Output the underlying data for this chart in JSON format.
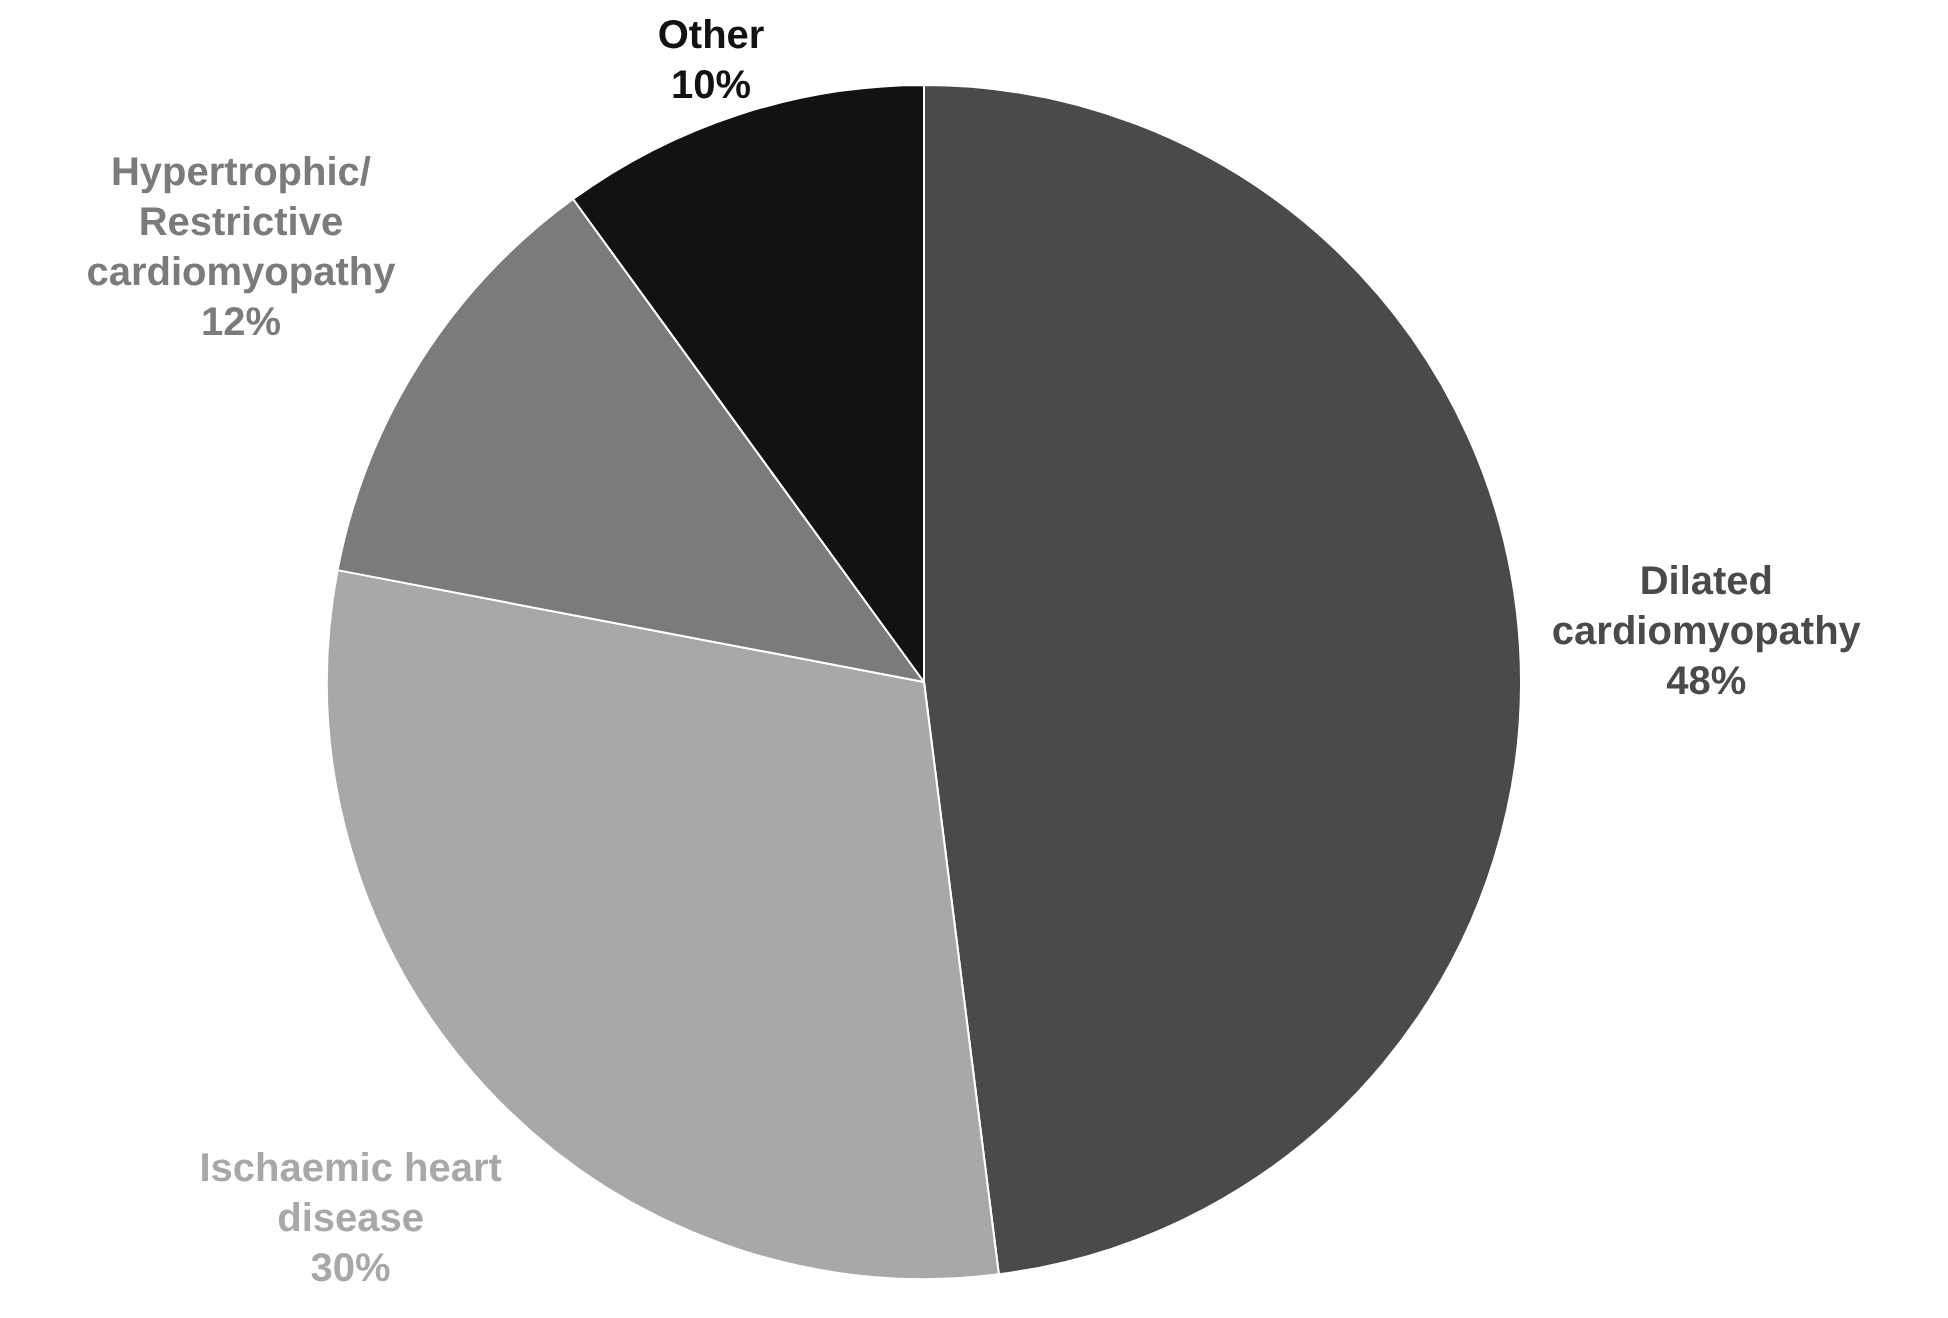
{
  "chart_data": {
    "type": "pie",
    "categories": [
      "Dilated cardiomyopathy",
      "Ischaemic heart disease",
      "Hypertrophic/Restrictive cardiomyopathy",
      "Other"
    ],
    "values": [
      48,
      30,
      12,
      10
    ],
    "colors": [
      "#4a4a4a",
      "#a8a8a8",
      "#7b7b7b",
      "#121212"
    ],
    "value_labels": [
      "48%",
      "30%",
      "12%",
      "10%"
    ],
    "legend": false
  }
}
